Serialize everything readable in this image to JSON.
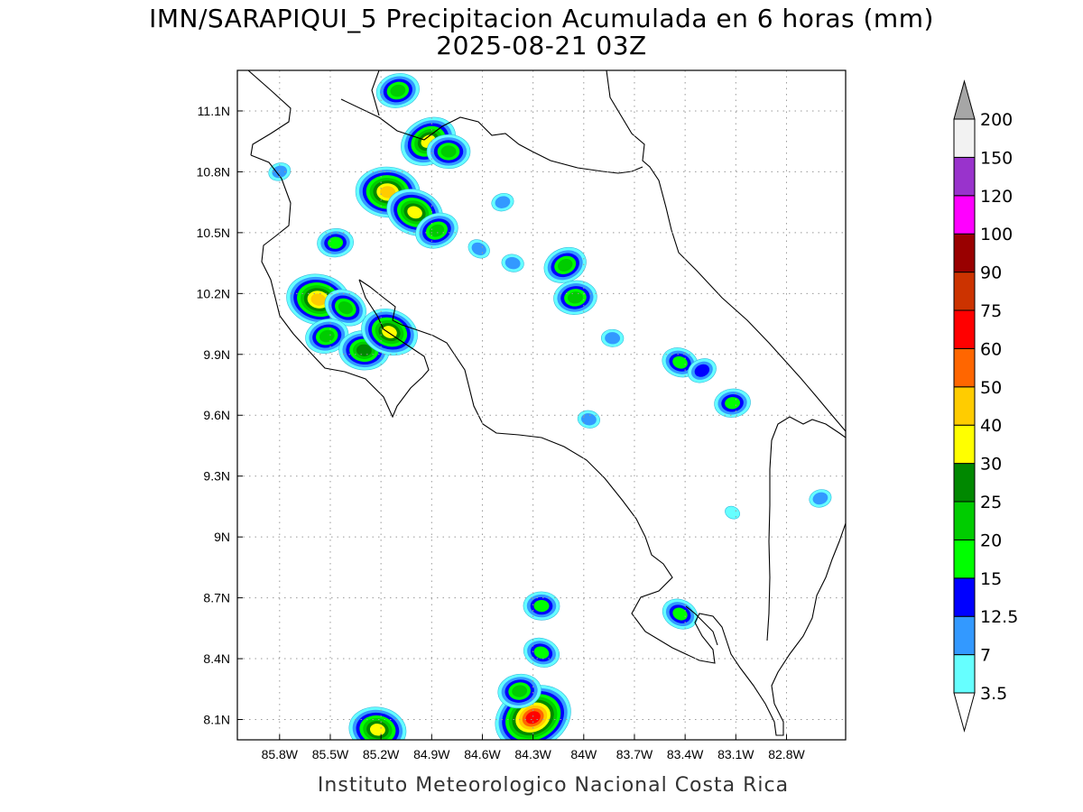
{
  "title": {
    "line1": "IMN/SARAPIQUI_5 Precipitacion Acumulada en 6 horas (mm)",
    "line2": "2025-08-21 03Z"
  },
  "footer": "Instituto Meteorologico Nacional Costa Rica",
  "map": {
    "lon_range": [
      -86.05,
      -82.45
    ],
    "lat_range": [
      8.0,
      11.3
    ],
    "lon_ticks": [
      {
        "value": -85.8,
        "label": "85.8W"
      },
      {
        "value": -85.5,
        "label": "85.5W"
      },
      {
        "value": -85.2,
        "label": "85.2W"
      },
      {
        "value": -84.9,
        "label": "84.9W"
      },
      {
        "value": -84.6,
        "label": "84.6W"
      },
      {
        "value": -84.3,
        "label": "84.3W"
      },
      {
        "value": -84.0,
        "label": "84W"
      },
      {
        "value": -83.7,
        "label": "83.7W"
      },
      {
        "value": -83.4,
        "label": "83.4W"
      },
      {
        "value": -83.1,
        "label": "83.1W"
      },
      {
        "value": -82.8,
        "label": "82.8W"
      }
    ],
    "lat_ticks": [
      {
        "value": 8.1,
        "label": "8.1N"
      },
      {
        "value": 8.4,
        "label": "8.4N"
      },
      {
        "value": 8.7,
        "label": "8.7N"
      },
      {
        "value": 9.0,
        "label": "9N"
      },
      {
        "value": 9.3,
        "label": "9.3N"
      },
      {
        "value": 9.6,
        "label": "9.6N"
      },
      {
        "value": 9.9,
        "label": "9.9N"
      },
      {
        "value": 10.2,
        "label": "10.2N"
      },
      {
        "value": 10.5,
        "label": "10.5N"
      },
      {
        "value": 10.8,
        "label": "10.8N"
      },
      {
        "value": 11.1,
        "label": "11.1N"
      }
    ],
    "grid": "dotted"
  },
  "colorbar": {
    "levels": [
      {
        "label": "3.5",
        "color": "#66ffff"
      },
      {
        "label": "7",
        "color": "#3399ff"
      },
      {
        "label": "12.5",
        "color": "#0000ff"
      },
      {
        "label": "15",
        "color": "#00ff00"
      },
      {
        "label": "20",
        "color": "#00cc00"
      },
      {
        "label": "25",
        "color": "#008800"
      },
      {
        "label": "30",
        "color": "#ffff00"
      },
      {
        "label": "40",
        "color": "#ffcc00"
      },
      {
        "label": "50",
        "color": "#ff6600"
      },
      {
        "label": "60",
        "color": "#ff0000"
      },
      {
        "label": "75",
        "color": "#cc3300"
      },
      {
        "label": "90",
        "color": "#990000"
      },
      {
        "label": "100",
        "color": "#ff00ff"
      },
      {
        "label": "120",
        "color": "#9933cc"
      },
      {
        "label": "150",
        "color": "#f2f2f2"
      },
      {
        "label": "200",
        "color": null
      }
    ],
    "over_color": "#a6a6a6",
    "under_color": "#ffffff"
  },
  "rain_cells": [
    {
      "lon": -84.92,
      "lat": 10.95,
      "peak": 7
    },
    {
      "lon": -85.1,
      "lat": 11.2,
      "peak": 5
    },
    {
      "lon": -85.16,
      "lat": 10.7,
      "peak": 8
    },
    {
      "lon": -85.0,
      "lat": 10.6,
      "peak": 7
    },
    {
      "lon": -84.87,
      "lat": 10.51,
      "peak": 5
    },
    {
      "lon": -85.47,
      "lat": 10.45,
      "peak": 4
    },
    {
      "lon": -85.57,
      "lat": 10.17,
      "peak": 8
    },
    {
      "lon": -85.41,
      "lat": 10.13,
      "peak": 5
    },
    {
      "lon": -85.52,
      "lat": 9.99,
      "peak": 5
    },
    {
      "lon": -85.3,
      "lat": 9.92,
      "peak": 6
    },
    {
      "lon": -85.15,
      "lat": 10.01,
      "peak": 7
    },
    {
      "lon": -84.11,
      "lat": 10.34,
      "peak": 5
    },
    {
      "lon": -84.05,
      "lat": 10.18,
      "peak": 5
    },
    {
      "lon": -84.42,
      "lat": 10.35,
      "peak": 2
    },
    {
      "lon": -84.62,
      "lat": 10.42,
      "peak": 2
    },
    {
      "lon": -84.48,
      "lat": 10.65,
      "peak": 2
    },
    {
      "lon": -83.83,
      "lat": 9.98,
      "peak": 2
    },
    {
      "lon": -83.43,
      "lat": 9.86,
      "peak": 4
    },
    {
      "lon": -83.3,
      "lat": 9.82,
      "peak": 3
    },
    {
      "lon": -83.12,
      "lat": 9.66,
      "peak": 4
    },
    {
      "lon": -83.97,
      "lat": 9.58,
      "peak": 2
    },
    {
      "lon": -83.12,
      "lat": 9.12,
      "peak": 1
    },
    {
      "lon": -82.6,
      "lat": 9.19,
      "peak": 2
    },
    {
      "lon": -84.25,
      "lat": 8.66,
      "peak": 4
    },
    {
      "lon": -84.25,
      "lat": 8.43,
      "peak": 4
    },
    {
      "lon": -84.3,
      "lat": 8.11,
      "peak": 10
    },
    {
      "lon": -84.38,
      "lat": 8.24,
      "peak": 5
    },
    {
      "lon": -85.22,
      "lat": 8.05,
      "peak": 7
    },
    {
      "lon": -83.43,
      "lat": 8.62,
      "peak": 4
    },
    {
      "lon": -85.8,
      "lat": 10.8,
      "peak": 2
    },
    {
      "lon": -84.8,
      "lat": 10.9,
      "peak": 5
    }
  ]
}
